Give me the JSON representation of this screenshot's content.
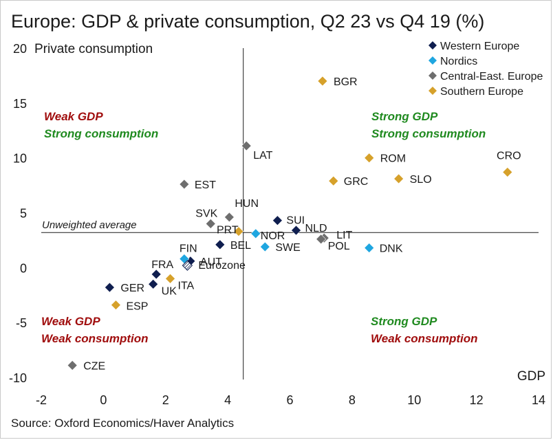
{
  "title": "Europe: GDP & private consumption, Q2 23 vs Q4 19 (%)",
  "source": "Source: Oxford Economics/Haver Analytics",
  "colors": {
    "western": "#0f1e4f",
    "nordics": "#1fa6e0",
    "central": "#6e6e6e",
    "southern": "#d6a12b",
    "weak": "#a00d0d",
    "strong": "#1f8a1f",
    "line": "#1a1a1a"
  },
  "chart_data": {
    "type": "scatter",
    "title": "Europe: GDP & private consumption, Q2 23 vs Q4 19 (%)",
    "xlabel": "GDP",
    "ylabel": "Private consumption",
    "xlim": [
      -2,
      14
    ],
    "ylim": [
      -10,
      20
    ],
    "xticks": [
      -2,
      0,
      2,
      4,
      6,
      8,
      10,
      12,
      14
    ],
    "yticks": [
      20,
      15,
      10,
      5,
      0,
      -5,
      -10
    ],
    "grid": false,
    "legend_position": "top-right",
    "reference_lines": {
      "vertical_x": 4.5,
      "horizontal_y": 3.2,
      "horizontal_label": "Unweighted average"
    },
    "series": [
      {
        "name": "Western Europe",
        "color": "#0f1e4f",
        "points": [
          {
            "label": "SUI",
            "x": 5.6,
            "y": 4.3
          },
          {
            "label": "NLD",
            "x": 6.2,
            "y": 3.4
          },
          {
            "label": "BEL",
            "x": 3.75,
            "y": 2.1
          },
          {
            "label": "AUT",
            "x": 2.8,
            "y": 0.6
          },
          {
            "label": "FRA",
            "x": 1.7,
            "y": -0.6
          },
          {
            "label": "UK",
            "x": 1.6,
            "y": -1.5
          },
          {
            "label": "GER",
            "x": 0.2,
            "y": -1.8
          }
        ]
      },
      {
        "name": "Nordics",
        "color": "#1fa6e0",
        "points": [
          {
            "label": "DNK",
            "x": 8.55,
            "y": 1.8
          },
          {
            "label": "NOR",
            "x": 4.9,
            "y": 3.1
          },
          {
            "label": "SWE",
            "x": 5.2,
            "y": 1.9
          },
          {
            "label": "FIN",
            "x": 2.6,
            "y": 0.8
          }
        ]
      },
      {
        "name": "Central-East. Europe",
        "color": "#6e6e6e",
        "points": [
          {
            "label": "LAT",
            "x": 4.6,
            "y": 11.1
          },
          {
            "label": "EST",
            "x": 2.6,
            "y": 7.6
          },
          {
            "label": "HUN",
            "x": 4.05,
            "y": 4.6
          },
          {
            "label": "SVK",
            "x": 3.45,
            "y": 4.0
          },
          {
            "label": "LIT",
            "x": 7.1,
            "y": 2.7
          },
          {
            "label": "POL",
            "x": 7.0,
            "y": 2.6
          },
          {
            "label": "CZE",
            "x": -1.0,
            "y": -8.9
          }
        ]
      },
      {
        "name": "Southern Europe",
        "color": "#d6a12b",
        "points": [
          {
            "label": "BGR",
            "x": 7.05,
            "y": 17.0
          },
          {
            "label": "CRO",
            "x": 13.0,
            "y": 8.7
          },
          {
            "label": "ROM",
            "x": 8.55,
            "y": 10.0
          },
          {
            "label": "SLO",
            "x": 9.5,
            "y": 8.1
          },
          {
            "label": "GRC",
            "x": 7.4,
            "y": 7.9
          },
          {
            "label": "PRT",
            "x": 4.35,
            "y": 3.3
          },
          {
            "label": "ITA",
            "x": 2.15,
            "y": -1.0
          },
          {
            "label": "ESP",
            "x": 0.4,
            "y": -3.4
          }
        ]
      },
      {
        "name": "Eurozone",
        "color": "#0f1e4f",
        "marker": "hatched-diamond",
        "points": [
          {
            "label": "Eurozone",
            "x": 2.7,
            "y": 0.2
          }
        ]
      }
    ],
    "annotations": [
      {
        "lines": [
          "Weak GDP",
          "Strong consumption"
        ],
        "styles": [
          "weak",
          "strong"
        ],
        "quadrant": "top-left"
      },
      {
        "lines": [
          "Strong GDP",
          "Strong consumption"
        ],
        "styles": [
          "strong",
          "strong"
        ],
        "quadrant": "top-right"
      },
      {
        "lines": [
          "Weak GDP",
          "Weak consumption"
        ],
        "styles": [
          "weak",
          "weak"
        ],
        "quadrant": "bottom-left"
      },
      {
        "lines": [
          "Strong GDP",
          "Weak consumption"
        ],
        "styles": [
          "strong",
          "weak"
        ],
        "quadrant": "bottom-right"
      }
    ]
  }
}
